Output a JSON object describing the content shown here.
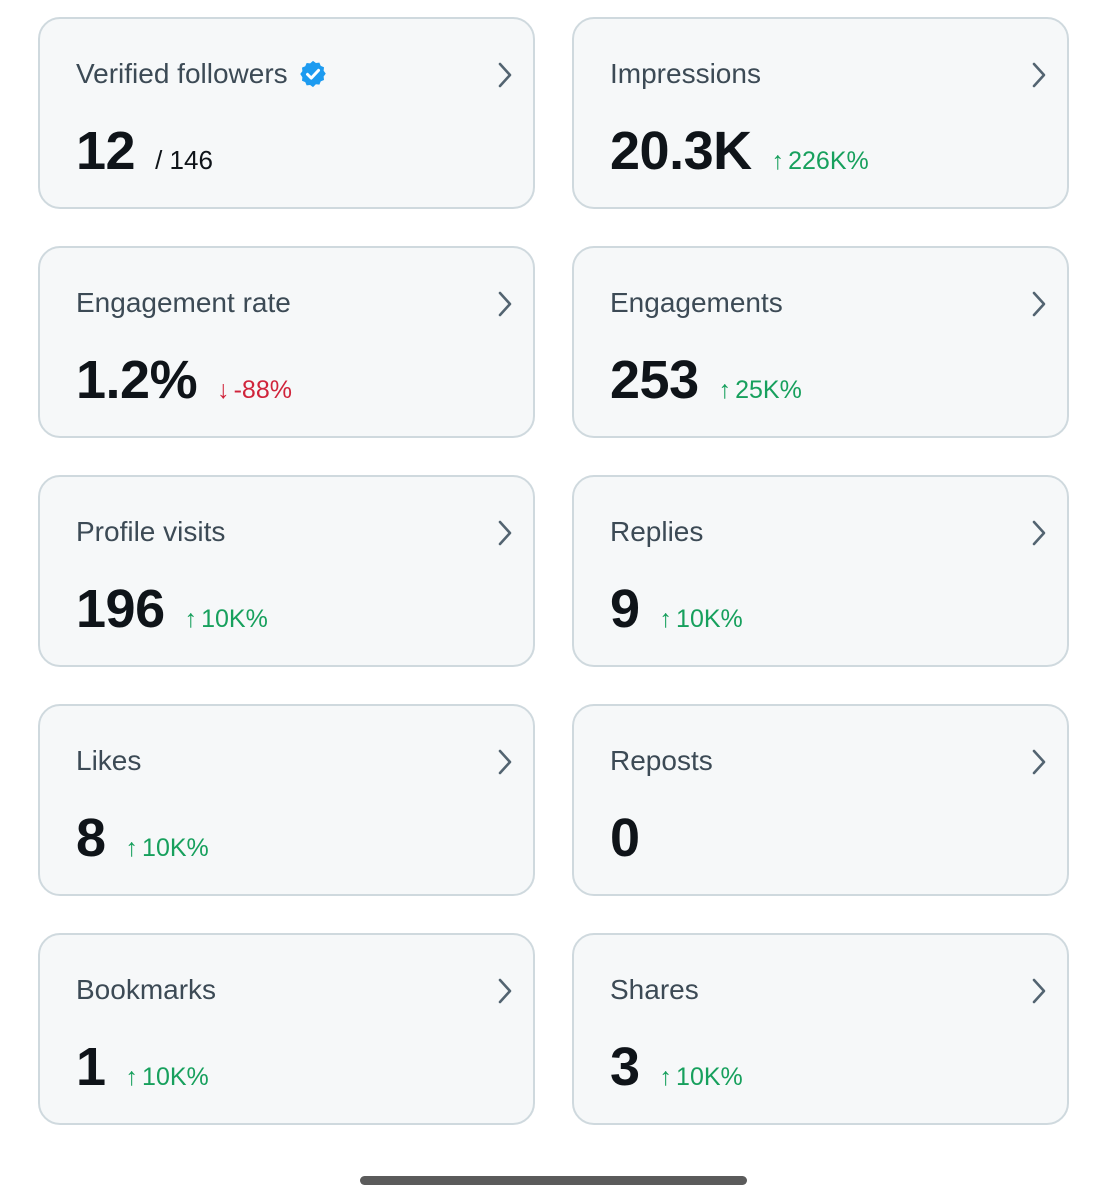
{
  "colors": {
    "up": "#17a05d",
    "down": "#d0243b",
    "verified": "#1d9bf0"
  },
  "cards": [
    {
      "title": "Verified followers",
      "value": "12",
      "sub": "/ 146",
      "delta": "",
      "direction": "",
      "verified": true
    },
    {
      "title": "Impressions",
      "value": "20.3K",
      "sub": "",
      "delta": "226K%",
      "direction": "up"
    },
    {
      "title": "Engagement rate",
      "value": "1.2%",
      "sub": "",
      "delta": "-88%",
      "direction": "down"
    },
    {
      "title": "Engagements",
      "value": "253",
      "sub": "",
      "delta": "25K%",
      "direction": "up"
    },
    {
      "title": "Profile visits",
      "value": "196",
      "sub": "",
      "delta": "10K%",
      "direction": "up"
    },
    {
      "title": "Replies",
      "value": "9",
      "sub": "",
      "delta": "10K%",
      "direction": "up"
    },
    {
      "title": "Likes",
      "value": "8",
      "sub": "",
      "delta": "10K%",
      "direction": "up"
    },
    {
      "title": "Reposts",
      "value": "0",
      "sub": "",
      "delta": "",
      "direction": ""
    },
    {
      "title": "Bookmarks",
      "value": "1",
      "sub": "",
      "delta": "10K%",
      "direction": "up"
    },
    {
      "title": "Shares",
      "value": "3",
      "sub": "",
      "delta": "10K%",
      "direction": "up"
    }
  ],
  "icons": {
    "chevron": "chevron-right-icon",
    "verified": "verified-badge-icon",
    "up": "arrow-up-icon",
    "down": "arrow-down-icon"
  }
}
